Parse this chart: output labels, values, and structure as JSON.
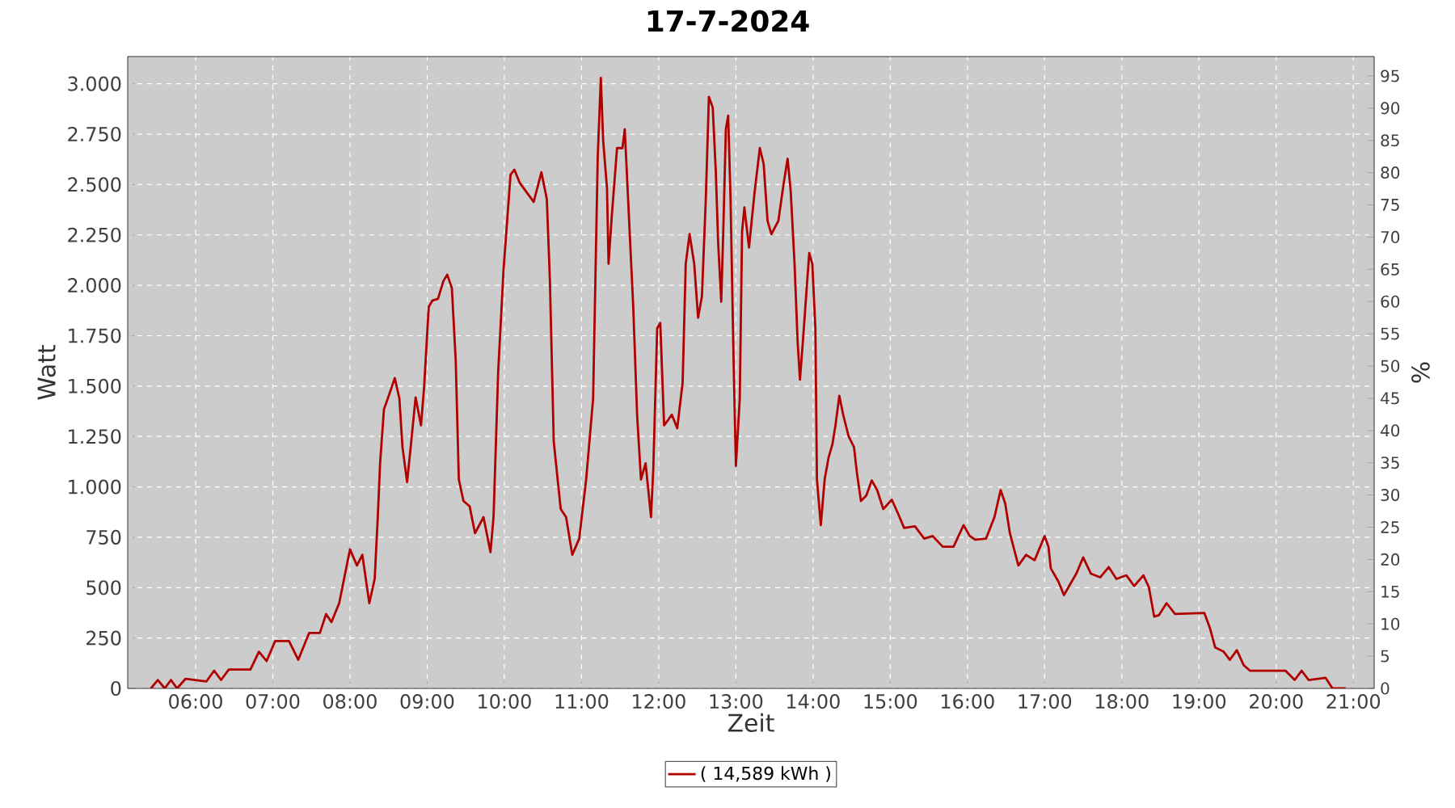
{
  "chart_data": {
    "type": "line",
    "title": "17-7-2024",
    "xlabel": "Zeit",
    "ylabel": "Watt",
    "y2label": "%",
    "x": [
      5.42,
      5.51,
      5.6,
      5.68,
      5.76,
      5.87,
      6.14,
      6.24,
      6.33,
      6.43,
      6.71,
      6.82,
      6.92,
      7.03,
      7.21,
      7.33,
      7.47,
      7.61,
      7.69,
      7.76,
      7.86,
      8.0,
      8.09,
      8.16,
      8.25,
      8.32,
      8.36,
      8.39,
      8.44,
      8.49,
      8.58,
      8.64,
      8.68,
      8.74,
      8.79,
      8.85,
      8.92,
      8.96,
      9.02,
      9.07,
      9.14,
      9.21,
      9.26,
      9.32,
      9.37,
      9.41,
      9.47,
      9.55,
      9.62,
      9.73,
      9.82,
      9.86,
      9.92,
      9.99,
      10.08,
      10.13,
      10.2,
      10.38,
      10.48,
      10.55,
      10.59,
      10.64,
      10.73,
      10.8,
      10.88,
      10.97,
      11.06,
      11.15,
      11.21,
      11.25,
      11.28,
      11.33,
      11.35,
      11.39,
      11.46,
      11.53,
      11.56,
      11.61,
      11.67,
      11.72,
      11.77,
      11.83,
      11.9,
      11.93,
      11.98,
      12.02,
      12.07,
      12.12,
      12.17,
      12.24,
      12.31,
      12.35,
      12.4,
      12.46,
      12.51,
      12.56,
      12.61,
      12.65,
      12.7,
      12.74,
      12.77,
      12.81,
      12.84,
      12.87,
      12.9,
      12.93,
      12.97,
      13.0,
      13.05,
      13.08,
      13.11,
      13.17,
      13.24,
      13.31,
      13.36,
      13.41,
      13.46,
      13.55,
      13.62,
      13.67,
      13.71,
      13.76,
      13.8,
      13.83,
      13.87,
      13.92,
      13.95,
      13.99,
      14.03,
      14.05,
      14.1,
      14.15,
      14.2,
      14.25,
      14.29,
      14.34,
      14.39,
      14.46,
      14.53,
      14.57,
      14.62,
      14.69,
      14.76,
      14.83,
      14.91,
      15.02,
      15.09,
      15.18,
      15.32,
      15.44,
      15.55,
      15.68,
      15.82,
      15.95,
      16.03,
      16.1,
      16.24,
      16.35,
      16.43,
      16.49,
      16.55,
      16.66,
      16.76,
      16.87,
      17.0,
      17.05,
      17.08,
      17.18,
      17.25,
      17.41,
      17.5,
      17.6,
      17.72,
      17.83,
      17.93,
      18.06,
      18.16,
      18.28,
      18.35,
      18.42,
      18.48,
      18.58,
      18.69,
      19.07,
      19.14,
      19.21,
      19.32,
      19.4,
      19.49,
      19.58,
      19.66,
      20.12,
      20.24,
      20.33,
      20.42,
      20.64,
      20.73,
      20.9
    ],
    "series": [
      {
        "name": "( 14,589 kWh )",
        "color": "#b00000",
        "values": [
          0,
          42,
          0,
          42,
          0,
          48,
          35,
          88,
          42,
          94,
          94,
          182,
          136,
          235,
          235,
          142,
          275,
          275,
          369,
          329,
          423,
          690,
          610,
          663,
          423,
          543,
          850,
          1117,
          1385,
          1438,
          1540,
          1438,
          1197,
          1024,
          1211,
          1444,
          1305,
          1492,
          1893,
          1925,
          1933,
          2021,
          2053,
          1986,
          1626,
          1037,
          930,
          904,
          770,
          850,
          676,
          850,
          1572,
          2080,
          2548,
          2574,
          2508,
          2414,
          2561,
          2428,
          2027,
          1225,
          890,
          850,
          663,
          743,
          1037,
          1438,
          2641,
          3029,
          2721,
          2481,
          2107,
          2334,
          2681,
          2681,
          2775,
          2374,
          1893,
          1358,
          1037,
          1117,
          850,
          1091,
          1786,
          1813,
          1305,
          1331,
          1358,
          1291,
          1518,
          2107,
          2254,
          2107,
          1839,
          1946,
          2428,
          2935,
          2882,
          2561,
          2213,
          1919,
          2320,
          2775,
          2842,
          2441,
          1626,
          1104,
          1438,
          2267,
          2387,
          2187,
          2454,
          2681,
          2601,
          2320,
          2254,
          2320,
          2508,
          2628,
          2468,
          2107,
          1719,
          1532,
          1732,
          2000,
          2160,
          2107,
          1786,
          1037,
          810,
          1037,
          1144,
          1211,
          1305,
          1452,
          1358,
          1251,
          1197,
          1064,
          930,
          957,
          1032,
          984,
          890,
          936,
          877,
          796,
          804,
          743,
          756,
          703,
          703,
          810,
          756,
          738,
          743,
          850,
          984,
          917,
          770,
          610,
          663,
          636,
          756,
          703,
          596,
          529,
          463,
          569,
          650,
          569,
          551,
          602,
          543,
          561,
          508,
          561,
          503,
          356,
          363,
          423,
          369,
          374,
          302,
          203,
          182,
          142,
          190,
          115,
          88,
          88,
          42,
          88,
          42,
          53,
          0,
          0
        ]
      }
    ],
    "xlim": [
      5.12,
      21.27
    ],
    "ylim": [
      0,
      3135
    ],
    "y2lim": [
      0,
      98
    ],
    "xticks": [
      {
        "value": 6,
        "label": "06:00"
      },
      {
        "value": 7,
        "label": "07:00"
      },
      {
        "value": 8,
        "label": "08:00"
      },
      {
        "value": 9,
        "label": "09:00"
      },
      {
        "value": 10,
        "label": "10:00"
      },
      {
        "value": 11,
        "label": "11:00"
      },
      {
        "value": 12,
        "label": "12:00"
      },
      {
        "value": 13,
        "label": "13:00"
      },
      {
        "value": 14,
        "label": "14:00"
      },
      {
        "value": 15,
        "label": "15:00"
      },
      {
        "value": 16,
        "label": "16:00"
      },
      {
        "value": 17,
        "label": "17:00"
      },
      {
        "value": 18,
        "label": "18:00"
      },
      {
        "value": 19,
        "label": "19:00"
      },
      {
        "value": 20,
        "label": "20:00"
      },
      {
        "value": 21,
        "label": "21:00"
      }
    ],
    "yticks": [
      0,
      250,
      500,
      750,
      {
        "value": 1000,
        "label": "1.000"
      },
      {
        "value": 1250,
        "label": "1.250"
      },
      {
        "value": 1500,
        "label": "1.500"
      },
      {
        "value": 1750,
        "label": "1.750"
      },
      {
        "value": 2000,
        "label": "2.000"
      },
      {
        "value": 2250,
        "label": "2.250"
      },
      {
        "value": 2500,
        "label": "2.500"
      },
      {
        "value": 2750,
        "label": "2.750"
      },
      {
        "value": 3000,
        "label": "3.000"
      }
    ],
    "y2ticks": [
      0,
      5,
      10,
      15,
      20,
      25,
      30,
      35,
      40,
      45,
      50,
      55,
      60,
      65,
      70,
      75,
      80,
      85,
      90,
      95
    ],
    "grid": true,
    "legend": "bottom"
  }
}
